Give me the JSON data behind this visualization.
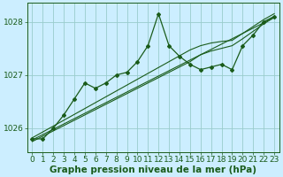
{
  "x": [
    0,
    1,
    2,
    3,
    4,
    5,
    6,
    7,
    8,
    9,
    10,
    11,
    12,
    13,
    14,
    15,
    16,
    17,
    18,
    19,
    20,
    21,
    22,
    23
  ],
  "y_main": [
    1025.8,
    1025.8,
    1026.0,
    1026.25,
    1026.55,
    1026.85,
    1026.75,
    1026.85,
    1027.0,
    1027.05,
    1027.25,
    1027.55,
    1028.15,
    1027.55,
    1027.35,
    1027.2,
    1027.1,
    1027.15,
    1027.2,
    1027.1,
    1027.55,
    1027.75,
    1028.0,
    1028.1
  ],
  "y_trend1": [
    1025.78,
    1025.88,
    1025.98,
    1026.08,
    1026.18,
    1026.28,
    1026.38,
    1026.48,
    1026.58,
    1026.68,
    1026.78,
    1026.88,
    1026.98,
    1027.08,
    1027.18,
    1027.28,
    1027.38,
    1027.48,
    1027.58,
    1027.68,
    1027.78,
    1027.88,
    1027.98,
    1028.08
  ],
  "y_trend2": [
    1025.82,
    1025.93,
    1026.04,
    1026.15,
    1026.26,
    1026.37,
    1026.48,
    1026.59,
    1026.7,
    1026.81,
    1026.92,
    1027.03,
    1027.14,
    1027.25,
    1027.36,
    1027.47,
    1027.55,
    1027.6,
    1027.63,
    1027.65,
    1027.78,
    1027.91,
    1028.04,
    1028.15
  ],
  "y_trend3": [
    1025.75,
    1025.85,
    1025.95,
    1026.05,
    1026.15,
    1026.25,
    1026.35,
    1026.45,
    1026.55,
    1026.65,
    1026.75,
    1026.85,
    1026.95,
    1027.05,
    1027.15,
    1027.25,
    1027.38,
    1027.45,
    1027.5,
    1027.55,
    1027.68,
    1027.82,
    1027.96,
    1028.08
  ],
  "bg_color": "#cceeff",
  "line_color": "#1a5c1a",
  "grid_color": "#99cccc",
  "xlabel": "Graphe pression niveau de la mer (hPa)",
  "ylim": [
    1025.55,
    1028.35
  ],
  "yticks": [
    1026,
    1027,
    1028
  ],
  "xticks": [
    0,
    1,
    2,
    3,
    4,
    5,
    6,
    7,
    8,
    9,
    10,
    11,
    12,
    13,
    14,
    15,
    16,
    17,
    18,
    19,
    20,
    21,
    22,
    23
  ],
  "marker": "D",
  "markersize": 2.0,
  "linewidth": 0.9,
  "trend_linewidth": 0.8,
  "xlabel_fontsize": 7.5,
  "tick_fontsize": 6.5
}
